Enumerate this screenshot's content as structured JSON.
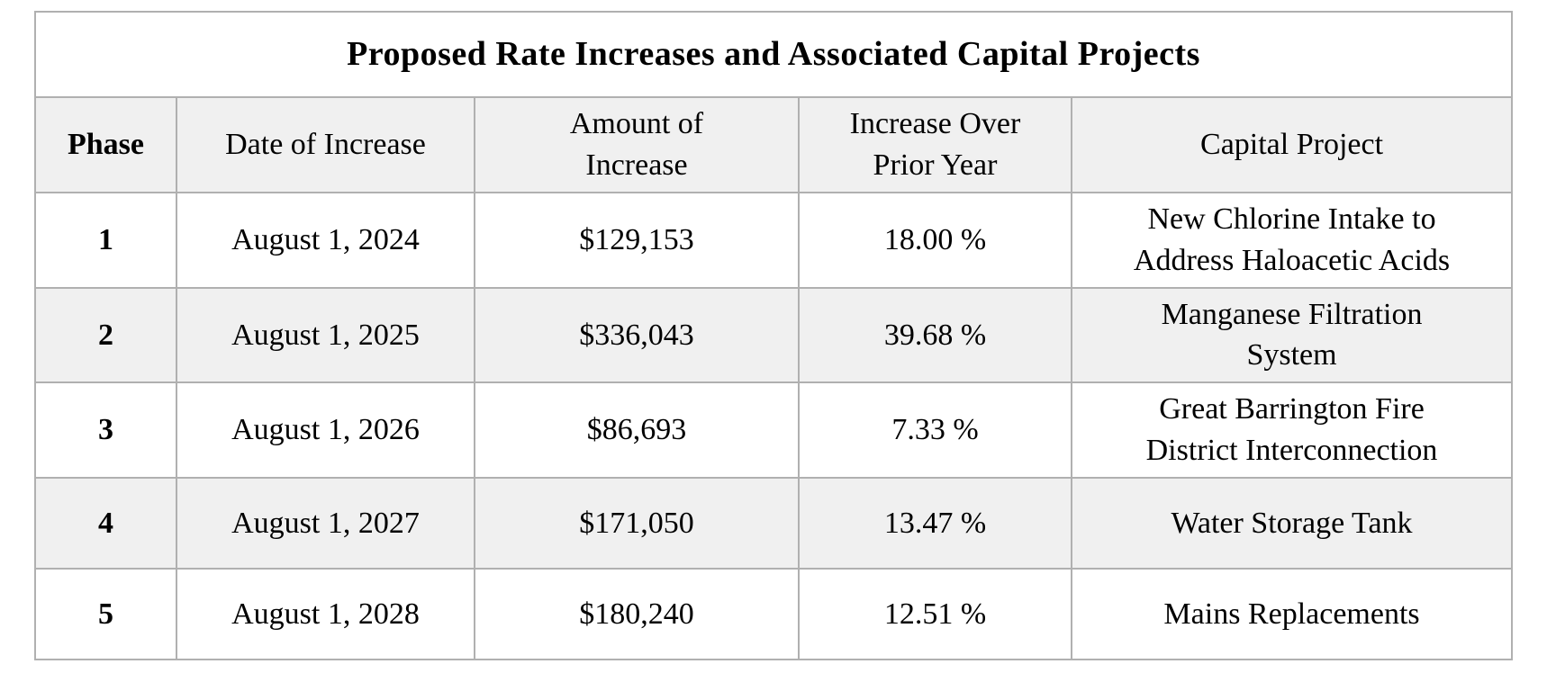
{
  "table": {
    "title": "Proposed Rate Increases and Associated Capital Projects",
    "columns": [
      {
        "label": "Phase",
        "lines": [
          "Phase"
        ]
      },
      {
        "label": "Date of Increase",
        "lines": [
          "Date of Increase"
        ]
      },
      {
        "label": "Amount of Increase",
        "lines": [
          "Amount of",
          "Increase"
        ]
      },
      {
        "label": "Increase Over Prior Year",
        "lines": [
          "Increase Over",
          "Prior Year"
        ]
      },
      {
        "label": "Capital Project",
        "lines": [
          "Capital Project"
        ]
      }
    ],
    "rows": [
      {
        "phase": "1",
        "date": "August 1, 2024",
        "amount": "$129,153",
        "increase": "18.00 %",
        "project": "New Chlorine Intake to Address Haloacetic Acids",
        "project_lines": [
          "New Chlorine Intake to",
          "Address Haloacetic Acids"
        ]
      },
      {
        "phase": "2",
        "date": "August 1, 2025",
        "amount": "$336,043",
        "increase": "39.68 %",
        "project": "Manganese Filtration System",
        "project_lines": [
          "Manganese Filtration",
          "System"
        ]
      },
      {
        "phase": "3",
        "date": "August 1, 2026",
        "amount": "$86,693",
        "increase": "7.33 %",
        "project": "Great Barrington Fire District Interconnection",
        "project_lines": [
          "Great Barrington Fire",
          "District Interconnection"
        ]
      },
      {
        "phase": "4",
        "date": "August 1, 2027",
        "amount": "$171,050",
        "increase": "13.47 %",
        "project": "Water Storage Tank",
        "project_lines": [
          "Water Storage Tank"
        ]
      },
      {
        "phase": "5",
        "date": "August 1, 2028",
        "amount": "$180,240",
        "increase": "12.51 %",
        "project": "Mains Replacements",
        "project_lines": [
          "Mains Replacements"
        ]
      }
    ]
  },
  "colors": {
    "page_bg": "#ffffff",
    "shaded_row_bg": "#f0f0f0",
    "border": "#b0b0b0",
    "text": "#000000"
  }
}
